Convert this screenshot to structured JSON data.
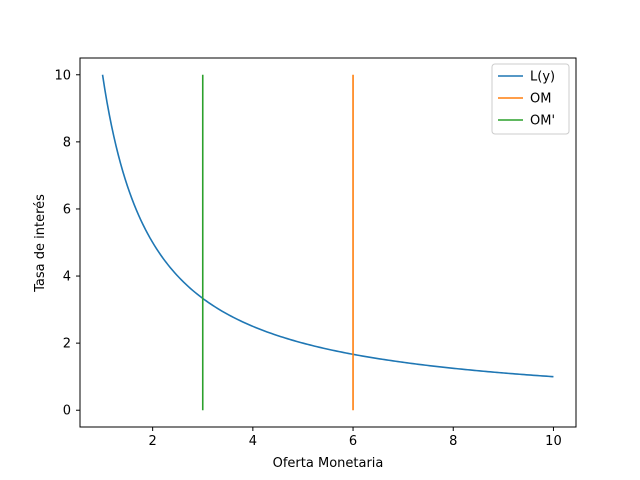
{
  "chart_data": {
    "type": "line",
    "title": "",
    "xlabel": "Oferta Monetaria",
    "ylabel": "Tasa de interés",
    "xlim": [
      0.55,
      10.45
    ],
    "ylim": [
      -0.5,
      10.5
    ],
    "xticks": [
      2,
      4,
      6,
      8,
      10
    ],
    "yticks": [
      0,
      2,
      4,
      6,
      8,
      10
    ],
    "grid": false,
    "legend_position": "top-right",
    "series": [
      {
        "name": "L(y)",
        "color": "#1f77b4",
        "x": [
          1,
          1.25,
          1.5,
          1.75,
          2,
          2.5,
          3,
          3.5,
          4,
          4.5,
          5,
          5.5,
          6,
          6.5,
          7,
          7.5,
          8,
          8.5,
          9,
          9.5,
          10
        ],
        "y": [
          10,
          8,
          6.67,
          5.71,
          5,
          4,
          3.33,
          2.86,
          2.5,
          2.22,
          2,
          1.82,
          1.67,
          1.54,
          1.43,
          1.33,
          1.25,
          1.18,
          1.11,
          1.05,
          1
        ]
      },
      {
        "name": "OM",
        "color": "#ff7f0e",
        "x": [
          6,
          6
        ],
        "y": [
          0,
          10
        ]
      },
      {
        "name": "OM'",
        "color": "#2ca02c",
        "x": [
          3,
          3
        ],
        "y": [
          0,
          10
        ]
      }
    ]
  }
}
